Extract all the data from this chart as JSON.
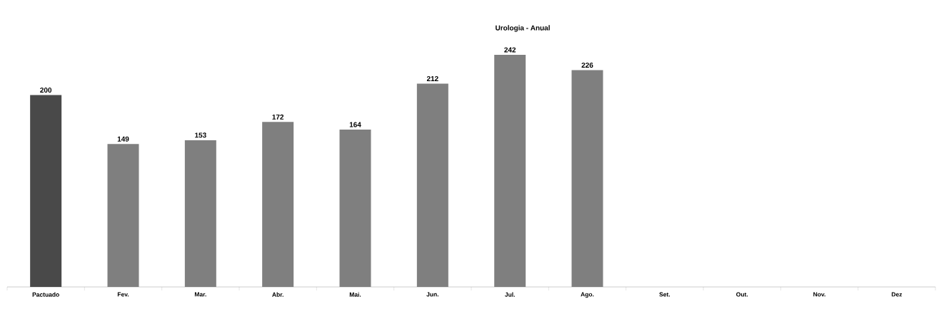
{
  "chart_data": {
    "type": "bar",
    "title": "Urologia - Anual",
    "categories": [
      "Pactuado",
      "Fev.",
      "Mar.",
      "Abr.",
      "Mai.",
      "Jun.",
      "Jul.",
      "Ago.",
      "Set.",
      "Out.",
      "Nov.",
      "Dez"
    ],
    "values": [
      200,
      149,
      153,
      172,
      164,
      212,
      242,
      226,
      null,
      null,
      null,
      null
    ],
    "colors": [
      "#494949",
      "#7f7f7f",
      "#7f7f7f",
      "#7f7f7f",
      "#7f7f7f",
      "#7f7f7f",
      "#7f7f7f",
      "#7f7f7f",
      "#7f7f7f",
      "#7f7f7f",
      "#7f7f7f",
      "#7f7f7f"
    ],
    "data_labels": true
  }
}
